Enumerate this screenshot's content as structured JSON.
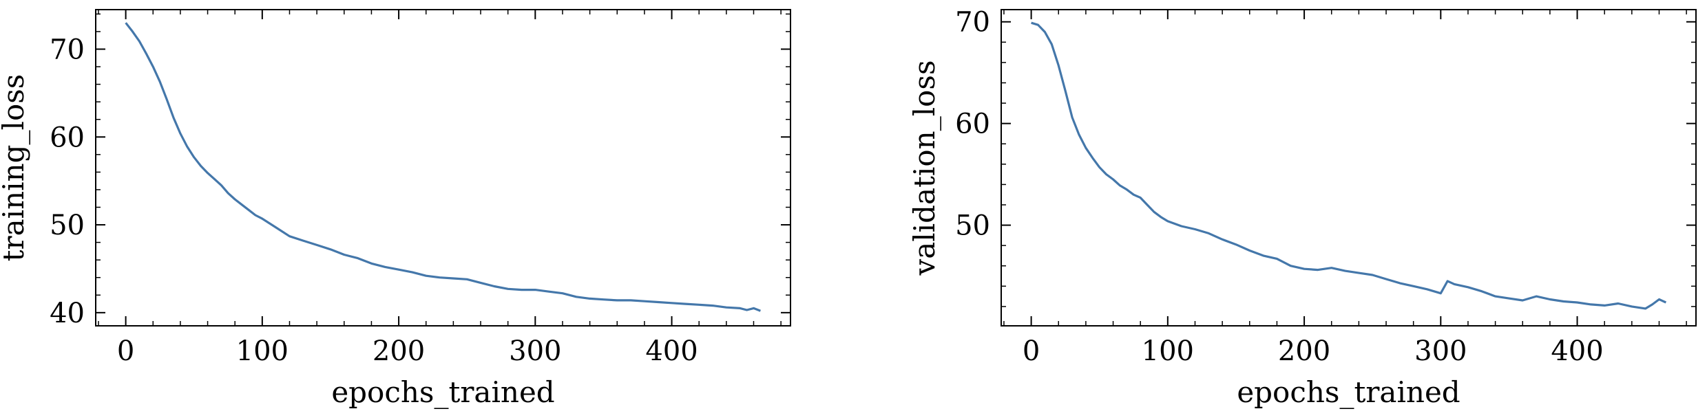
{
  "chart_data": [
    {
      "type": "line",
      "xlabel": "epochs_trained",
      "ylabel": "training_loss",
      "xlim": [
        -22,
        487
      ],
      "ylim": [
        38.5,
        74.5
      ],
      "xticks": [
        0,
        100,
        200,
        300,
        400
      ],
      "yticks": [
        40,
        50,
        60,
        70
      ],
      "grid": false,
      "color": "#4477aa",
      "series": [
        {
          "x": [
            0,
            5,
            10,
            15,
            20,
            25,
            30,
            35,
            40,
            45,
            50,
            55,
            60,
            65,
            70,
            75,
            80,
            85,
            90,
            95,
            100,
            110,
            120,
            130,
            140,
            150,
            160,
            170,
            180,
            190,
            200,
            210,
            220,
            230,
            240,
            250,
            260,
            270,
            280,
            290,
            300,
            310,
            320,
            330,
            340,
            350,
            360,
            370,
            380,
            390,
            400,
            410,
            420,
            430,
            440,
            450,
            455,
            460,
            465
          ],
          "y": [
            73.0,
            72.0,
            70.9,
            69.5,
            68.0,
            66.3,
            64.3,
            62.2,
            60.4,
            58.9,
            57.7,
            56.7,
            55.9,
            55.2,
            54.5,
            53.6,
            52.9,
            52.3,
            51.7,
            51.1,
            50.7,
            49.7,
            48.7,
            48.2,
            47.7,
            47.2,
            46.6,
            46.2,
            45.6,
            45.2,
            44.9,
            44.6,
            44.2,
            44.0,
            43.9,
            43.8,
            43.4,
            43.0,
            42.7,
            42.6,
            42.6,
            42.4,
            42.2,
            41.8,
            41.6,
            41.5,
            41.4,
            41.4,
            41.3,
            41.2,
            41.1,
            41.0,
            40.9,
            40.8,
            40.6,
            40.5,
            40.3,
            40.5,
            40.2
          ]
        }
      ]
    },
    {
      "type": "line",
      "xlabel": "epochs_trained",
      "ylabel": "validation_loss",
      "xlim": [
        -22,
        487
      ],
      "ylim": [
        40.1,
        71.2
      ],
      "xticks": [
        0,
        100,
        200,
        300,
        400
      ],
      "yticks": [
        50,
        60,
        70
      ],
      "grid": false,
      "color": "#4477aa",
      "series": [
        {
          "x": [
            0,
            5,
            10,
            15,
            20,
            25,
            30,
            35,
            40,
            45,
            50,
            55,
            60,
            65,
            70,
            75,
            80,
            85,
            90,
            95,
            100,
            110,
            120,
            130,
            140,
            150,
            160,
            170,
            180,
            190,
            200,
            210,
            220,
            230,
            240,
            250,
            260,
            270,
            280,
            290,
            300,
            305,
            310,
            320,
            330,
            340,
            350,
            360,
            370,
            380,
            390,
            400,
            410,
            420,
            430,
            440,
            450,
            455,
            460,
            465
          ],
          "y": [
            69.9,
            69.7,
            69.0,
            67.8,
            65.7,
            63.2,
            60.6,
            58.9,
            57.6,
            56.6,
            55.7,
            55.0,
            54.5,
            53.9,
            53.5,
            53.0,
            52.7,
            52.0,
            51.3,
            50.8,
            50.4,
            49.9,
            49.6,
            49.2,
            48.6,
            48.1,
            47.5,
            47.0,
            46.7,
            46.0,
            45.7,
            45.6,
            45.8,
            45.5,
            45.3,
            45.1,
            44.7,
            44.3,
            44.0,
            43.7,
            43.3,
            44.5,
            44.2,
            43.9,
            43.5,
            43.0,
            42.8,
            42.6,
            43.0,
            42.7,
            42.5,
            42.4,
            42.2,
            42.1,
            42.3,
            42.0,
            41.8,
            42.2,
            42.7,
            42.4
          ]
        }
      ]
    }
  ]
}
